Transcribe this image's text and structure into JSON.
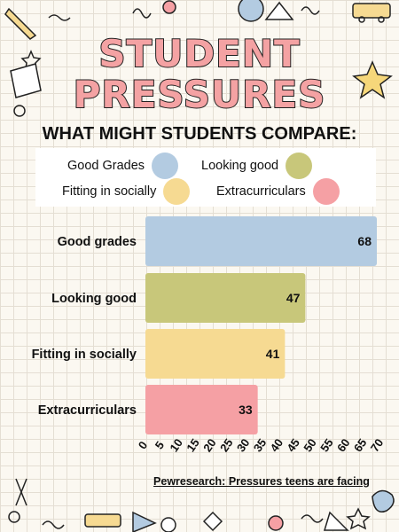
{
  "page": {
    "title_line1": "STUDENT",
    "title_line2": "PRESSURES",
    "subtitle": "WHAT MIGHT STUDENTS COMPARE:",
    "source": "Pewresearch: Pressures teens are facing",
    "colors": {
      "background": "#fbf8f1",
      "title_fill": "#f4a2a3",
      "good_grades": "#b3cbe1",
      "looking_good": "#c8c77a",
      "fitting_in": "#f6da92",
      "extracurriculars": "#f5a0a4"
    }
  },
  "legend": [
    {
      "label": "Good Grades",
      "color": "#b3cbe1"
    },
    {
      "label": "Looking good",
      "color": "#c8c77a"
    },
    {
      "label": "Fitting in socially",
      "color": "#f6da92"
    },
    {
      "label": "Extracurriculars",
      "color": "#f5a0a4"
    }
  ],
  "chart_data": {
    "type": "bar",
    "orientation": "horizontal",
    "title": "",
    "xlabel": "",
    "ylabel": "",
    "categories": [
      "Good grades",
      "Looking good",
      "Fitting in socially",
      "Extracurriculars"
    ],
    "values": [
      68,
      47,
      41,
      33
    ],
    "colors": [
      "#b3cbe1",
      "#c8c77a",
      "#f6da92",
      "#f5a0a4"
    ],
    "xlim": [
      0,
      70
    ],
    "xticks": [
      0,
      5,
      10,
      15,
      20,
      25,
      30,
      35,
      40,
      45,
      50,
      55,
      60,
      65,
      70
    ],
    "data_labels": true,
    "grid": false
  }
}
